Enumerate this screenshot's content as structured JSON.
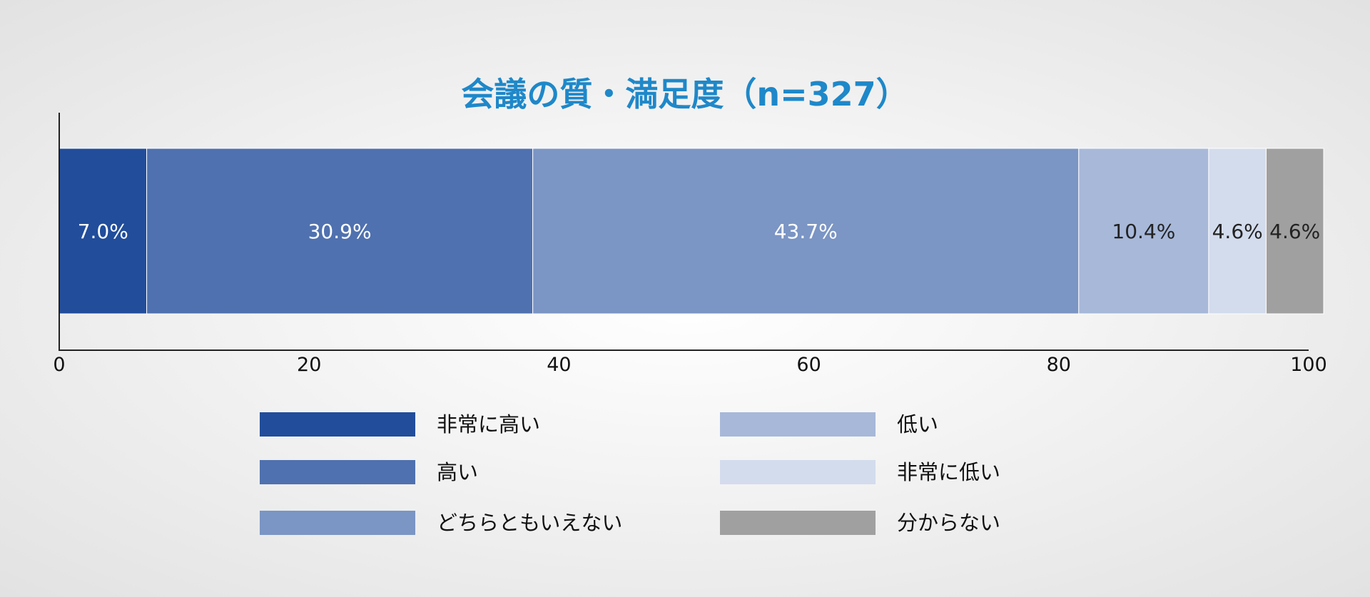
{
  "chart_data": {
    "type": "bar",
    "orientation": "horizontal-stacked",
    "title": "会議の質・満足度（n=327）",
    "xlim": [
      0,
      100
    ],
    "x_ticks": [
      0,
      20,
      40,
      60,
      80,
      100
    ],
    "grid": false,
    "legend_position": "bottom",
    "series": [
      {
        "name": "非常に高い",
        "value": 7.0,
        "label": "7.0%",
        "color": "#214d9b",
        "label_color": "#ffffff"
      },
      {
        "name": "高い",
        "value": 30.9,
        "label": "30.9%",
        "color": "#4f71af",
        "label_color": "#ffffff"
      },
      {
        "name": "どちらともいえない",
        "value": 43.7,
        "label": "43.7%",
        "color": "#7b95c4",
        "label_color": "#ffffff"
      },
      {
        "name": "低い",
        "value": 10.4,
        "label": "10.4%",
        "color": "#a7b8d9",
        "label_color": "#222222"
      },
      {
        "name": "非常に低い",
        "value": 4.6,
        "label": "4.6%",
        "color": "#d3dced",
        "label_color": "#222222"
      },
      {
        "name": "分からない",
        "value": 4.6,
        "label": "4.6%",
        "color": "#a0a0a0",
        "label_color": "#222222"
      }
    ]
  }
}
